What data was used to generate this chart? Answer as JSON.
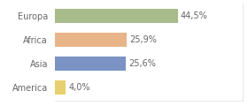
{
  "categories": [
    "Europa",
    "Africa",
    "Asia",
    "America"
  ],
  "values": [
    44.5,
    25.9,
    25.6,
    4.0
  ],
  "bar_colors": [
    "#a8bb8a",
    "#e8b48a",
    "#7b93c4",
    "#e8d070"
  ],
  "labels": [
    "44,5%",
    "25,9%",
    "25,6%",
    "4,0%"
  ],
  "background_color": "#ffffff",
  "xlim": [
    0,
    68
  ],
  "bar_height": 0.6,
  "label_fontsize": 7.0,
  "category_fontsize": 7.0,
  "text_color": "#666666"
}
